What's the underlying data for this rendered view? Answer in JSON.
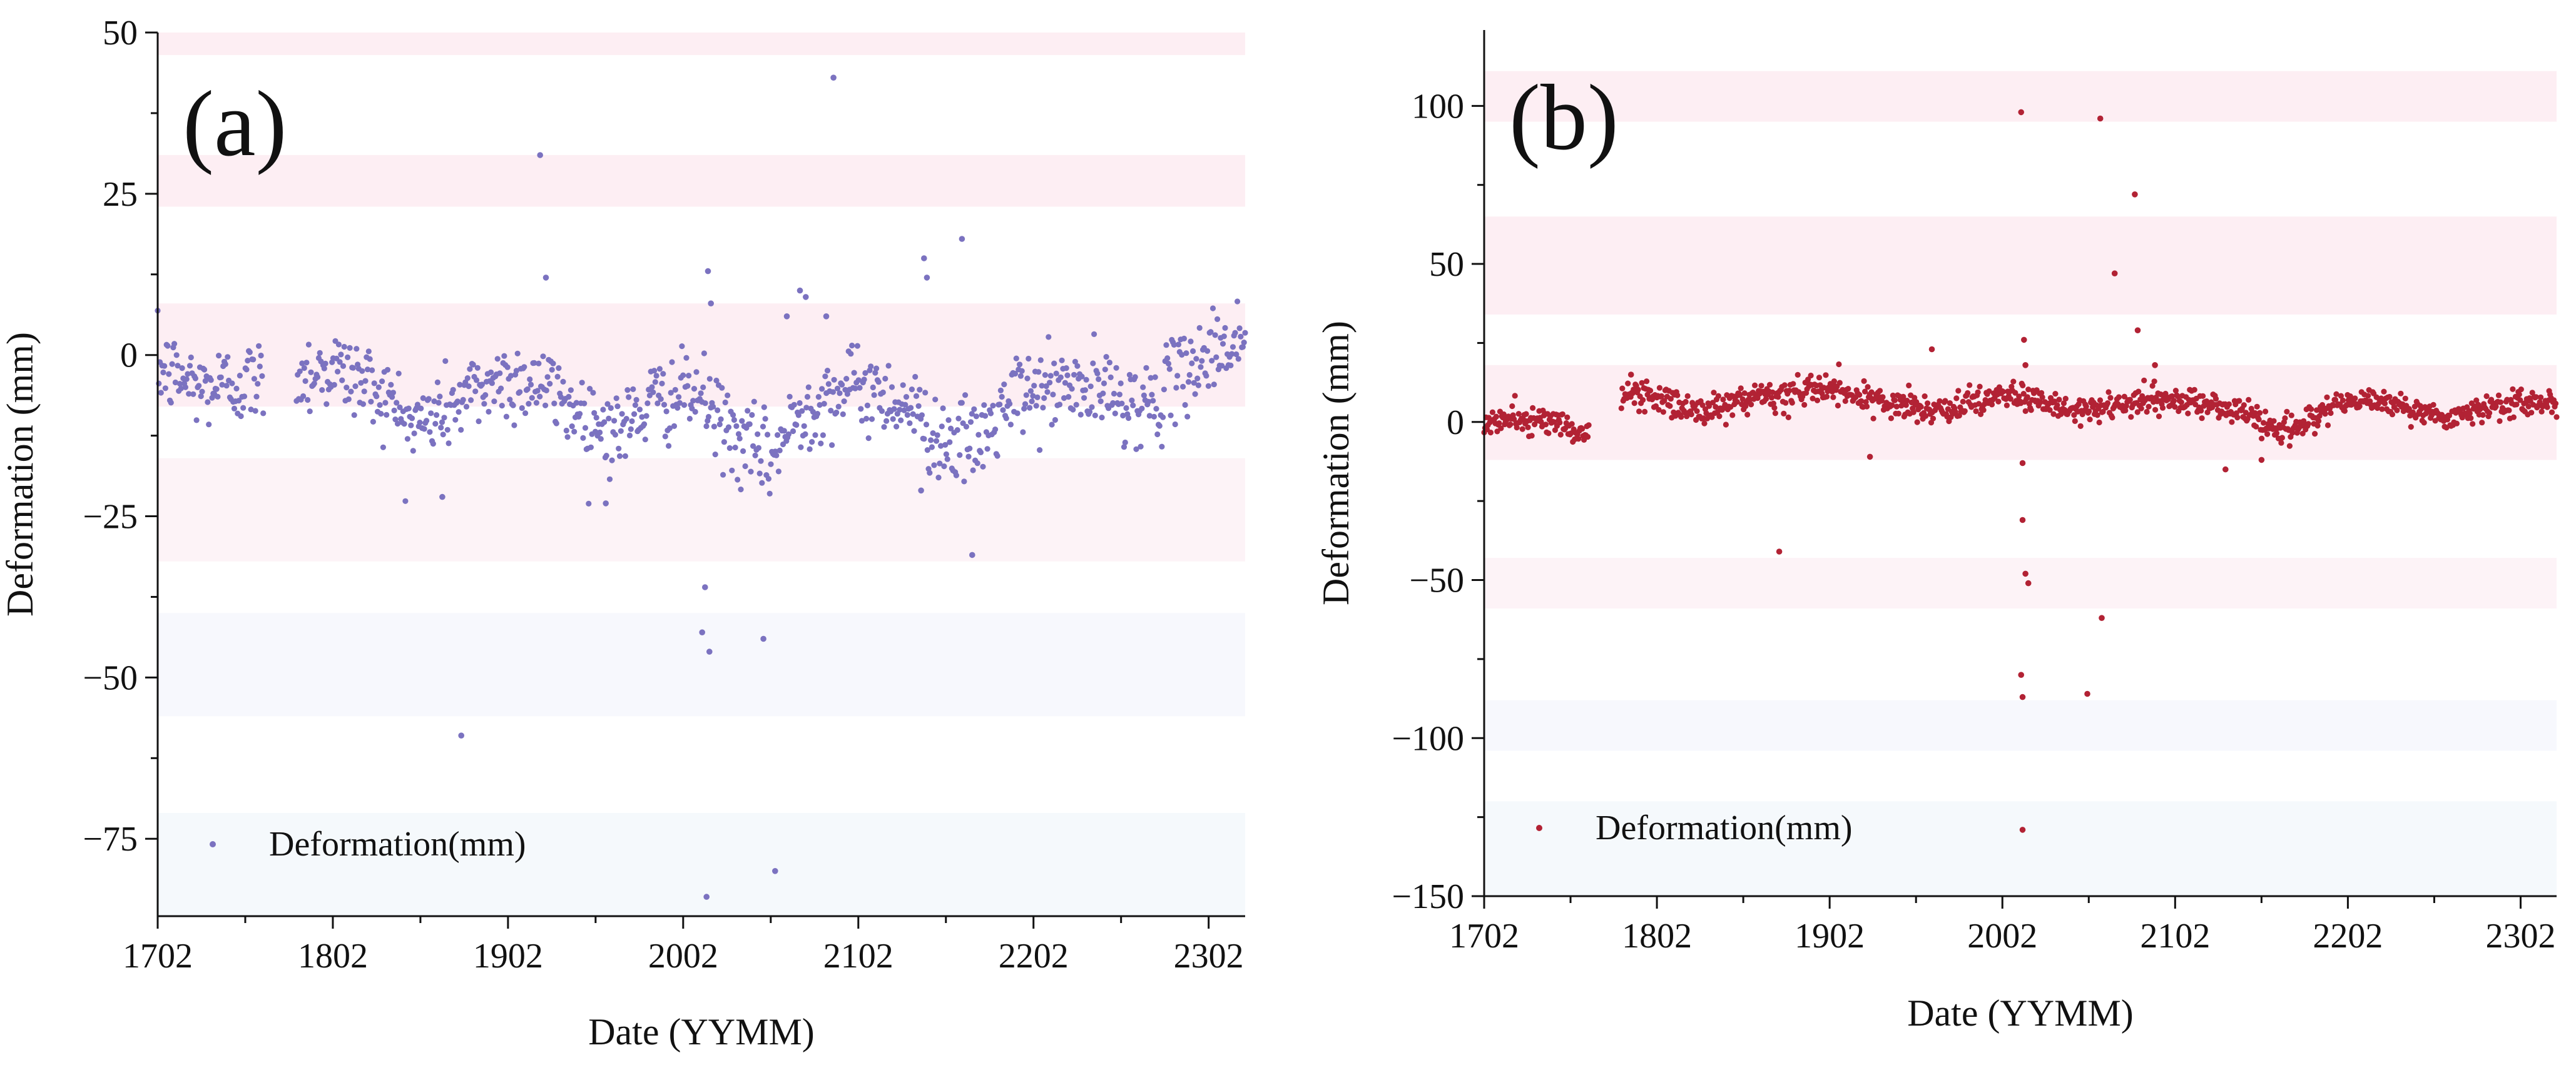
{
  "figure": {
    "panels": [
      "a",
      "b"
    ]
  },
  "chart_data": [
    {
      "type": "scatter",
      "panel_label": "(a)",
      "title": "",
      "xlabel": "Date (YYMM)",
      "ylabel": "Deformation (mm)",
      "legend": "Deformation(mm)",
      "legend_position": "bottom-left",
      "marker_color": "#7b72c0",
      "xlim": [
        0,
        74.5
      ],
      "ylim": [
        -87,
        50
      ],
      "x_ticks": [
        {
          "pos": 0,
          "label": "1702"
        },
        {
          "pos": 12,
          "label": "1802"
        },
        {
          "pos": 24,
          "label": "1902"
        },
        {
          "pos": 36,
          "label": "2002"
        },
        {
          "pos": 48,
          "label": "2102"
        },
        {
          "pos": 60,
          "label": "2202"
        },
        {
          "pos": 72,
          "label": "2302"
        }
      ],
      "y_ticks": [
        {
          "value": 50,
          "label": "50"
        },
        {
          "value": 25,
          "label": "25"
        },
        {
          "value": 0,
          "label": "0"
        },
        {
          "value": -25,
          "label": "−25"
        },
        {
          "value": -50,
          "label": "−50"
        },
        {
          "value": -75,
          "label": "−75"
        }
      ],
      "bands": [
        {
          "from": 46.5,
          "to": 50,
          "color": "#fdeef3"
        },
        {
          "from": 23,
          "to": 31,
          "color": "#fdeef3"
        },
        {
          "from": -8,
          "to": 8,
          "color": "#fdeef3"
        },
        {
          "from": -32,
          "to": -16,
          "color": "#fdf3f7"
        },
        {
          "from": -56,
          "to": -40,
          "color": "#f7f8fd"
        },
        {
          "from": -87,
          "to": -71,
          "color": "#f5f9fc"
        }
      ],
      "series": [
        {
          "name": "Deformation(mm)",
          "x_start": 0,
          "x_end": 74.5,
          "gaps": [
            [
              7.3,
              9.5
            ]
          ],
          "trend": [
            {
              "x": 0,
              "y": -2
            },
            {
              "x": 3,
              "y": -5
            },
            {
              "x": 7,
              "y": -4
            },
            {
              "x": 9.5,
              "y": -3
            },
            {
              "x": 12,
              "y": -2
            },
            {
              "x": 15,
              "y": -5
            },
            {
              "x": 17.5,
              "y": -11
            },
            {
              "x": 20,
              "y": -8
            },
            {
              "x": 23,
              "y": -4
            },
            {
              "x": 26,
              "y": -4
            },
            {
              "x": 29,
              "y": -9
            },
            {
              "x": 31.5,
              "y": -12
            },
            {
              "x": 34,
              "y": -7
            },
            {
              "x": 37,
              "y": -6
            },
            {
              "x": 40,
              "y": -14
            },
            {
              "x": 42,
              "y": -16
            },
            {
              "x": 44,
              "y": -9
            },
            {
              "x": 46,
              "y": -6
            },
            {
              "x": 48,
              "y": -5
            },
            {
              "x": 51,
              "y": -7
            },
            {
              "x": 53.5,
              "y": -13
            },
            {
              "x": 56,
              "y": -14
            },
            {
              "x": 59,
              "y": -6
            },
            {
              "x": 62,
              "y": -5
            },
            {
              "x": 65,
              "y": -6
            },
            {
              "x": 68,
              "y": -8
            },
            {
              "x": 71,
              "y": -1
            },
            {
              "x": 74.5,
              "y": 3
            }
          ],
          "noise": 3.2,
          "count": 980,
          "outliers": [
            {
              "x": 46.3,
              "y": 43
            },
            {
              "x": 26.2,
              "y": 31
            },
            {
              "x": 26.6,
              "y": 12
            },
            {
              "x": 20.8,
              "y": -59
            },
            {
              "x": 37.5,
              "y": -36
            },
            {
              "x": 37.3,
              "y": -43
            },
            {
              "x": 37.8,
              "y": -46
            },
            {
              "x": 41.5,
              "y": -44
            },
            {
              "x": 37.6,
              "y": -84
            },
            {
              "x": 42.3,
              "y": -80
            },
            {
              "x": 37.7,
              "y": 13
            },
            {
              "x": 37.9,
              "y": 8
            },
            {
              "x": 52.5,
              "y": 15
            },
            {
              "x": 52.7,
              "y": 12
            },
            {
              "x": 55.1,
              "y": 18
            },
            {
              "x": 55.8,
              "y": -31
            },
            {
              "x": 43.1,
              "y": 6
            },
            {
              "x": 44.0,
              "y": 10
            },
            {
              "x": 44.4,
              "y": 9
            },
            {
              "x": 45.8,
              "y": 6
            },
            {
              "x": 52.3,
              "y": -21
            },
            {
              "x": 19.5,
              "y": -22
            },
            {
              "x": 30.7,
              "y": -23
            }
          ]
        }
      ]
    },
    {
      "type": "scatter",
      "panel_label": "(b)",
      "title": "",
      "xlabel": "Date (YYMM)",
      "ylabel": "Deformation (mm)",
      "legend": "Deformation(mm)",
      "legend_position": "bottom-left",
      "marker_color": "#b22234",
      "xlim": [
        0,
        74.5
      ],
      "ylim": [
        -150,
        124
      ],
      "x_ticks": [
        {
          "pos": 0,
          "label": "1702"
        },
        {
          "pos": 12,
          "label": "1802"
        },
        {
          "pos": 24,
          "label": "1902"
        },
        {
          "pos": 36,
          "label": "2002"
        },
        {
          "pos": 48,
          "label": "2102"
        },
        {
          "pos": 60,
          "label": "2202"
        },
        {
          "pos": 72,
          "label": "2302"
        }
      ],
      "y_ticks": [
        {
          "value": 100,
          "label": "100"
        },
        {
          "value": 50,
          "label": "50"
        },
        {
          "value": 0,
          "label": "0"
        },
        {
          "value": -50,
          "label": "−50"
        },
        {
          "value": -100,
          "label": "−100"
        },
        {
          "value": -150,
          "label": "−150"
        }
      ],
      "bands": [
        {
          "from": 95,
          "to": 111,
          "color": "#fdeef3"
        },
        {
          "from": 34,
          "to": 65,
          "color": "#fdeef3"
        },
        {
          "from": -12,
          "to": 18,
          "color": "#fdeef3"
        },
        {
          "from": -59,
          "to": -43,
          "color": "#fdf3f7"
        },
        {
          "from": -104,
          "to": -88,
          "color": "#f7f8fd"
        },
        {
          "from": -150,
          "to": -120,
          "color": "#f5f9fc"
        }
      ],
      "series": [
        {
          "name": "Deformation(mm)",
          "x_start": 0,
          "x_end": 74.5,
          "gaps": [
            [
              7.3,
              9.5
            ]
          ],
          "trend": [
            {
              "x": 0,
              "y": 0
            },
            {
              "x": 4,
              "y": 1
            },
            {
              "x": 7.2,
              "y": -4
            },
            {
              "x": 9.5,
              "y": 8
            },
            {
              "x": 11,
              "y": 9
            },
            {
              "x": 13,
              "y": 6
            },
            {
              "x": 15,
              "y": 3
            },
            {
              "x": 17,
              "y": 6
            },
            {
              "x": 20,
              "y": 7
            },
            {
              "x": 23,
              "y": 11
            },
            {
              "x": 26,
              "y": 8
            },
            {
              "x": 29,
              "y": 5
            },
            {
              "x": 32,
              "y": 3
            },
            {
              "x": 34,
              "y": 7
            },
            {
              "x": 36.5,
              "y": 9
            },
            {
              "x": 39,
              "y": 5
            },
            {
              "x": 42,
              "y": 3
            },
            {
              "x": 45,
              "y": 6
            },
            {
              "x": 48,
              "y": 7
            },
            {
              "x": 51,
              "y": 5
            },
            {
              "x": 53,
              "y": 3
            },
            {
              "x": 55,
              "y": -3
            },
            {
              "x": 57,
              "y": 0
            },
            {
              "x": 59.5,
              "y": 6
            },
            {
              "x": 62,
              "y": 7
            },
            {
              "x": 65,
              "y": 4
            },
            {
              "x": 67,
              "y": 0
            },
            {
              "x": 69,
              "y": 4
            },
            {
              "x": 72,
              "y": 6
            },
            {
              "x": 74.5,
              "y": 6
            }
          ],
          "noise": 2.2,
          "count": 1150,
          "outliers": [
            {
              "x": 37.3,
              "y": 98
            },
            {
              "x": 42.8,
              "y": 96
            },
            {
              "x": 45.2,
              "y": 72
            },
            {
              "x": 43.8,
              "y": 47
            },
            {
              "x": 45.4,
              "y": 29
            },
            {
              "x": 37.5,
              "y": 26
            },
            {
              "x": 37.6,
              "y": 18
            },
            {
              "x": 37.4,
              "y": -13
            },
            {
              "x": 37.4,
              "y": -31
            },
            {
              "x": 37.6,
              "y": -48
            },
            {
              "x": 37.8,
              "y": -51
            },
            {
              "x": 37.3,
              "y": -80
            },
            {
              "x": 37.4,
              "y": -87
            },
            {
              "x": 41.9,
              "y": -86
            },
            {
              "x": 42.9,
              "y": -62
            },
            {
              "x": 37.4,
              "y": -129
            },
            {
              "x": 20.5,
              "y": -41
            },
            {
              "x": 31.1,
              "y": 23
            },
            {
              "x": 26.8,
              "y": -11
            },
            {
              "x": 54.0,
              "y": -12
            },
            {
              "x": 51.5,
              "y": -15
            },
            {
              "x": 46.6,
              "y": 18
            },
            {
              "x": 10.2,
              "y": 15
            }
          ]
        }
      ]
    }
  ]
}
